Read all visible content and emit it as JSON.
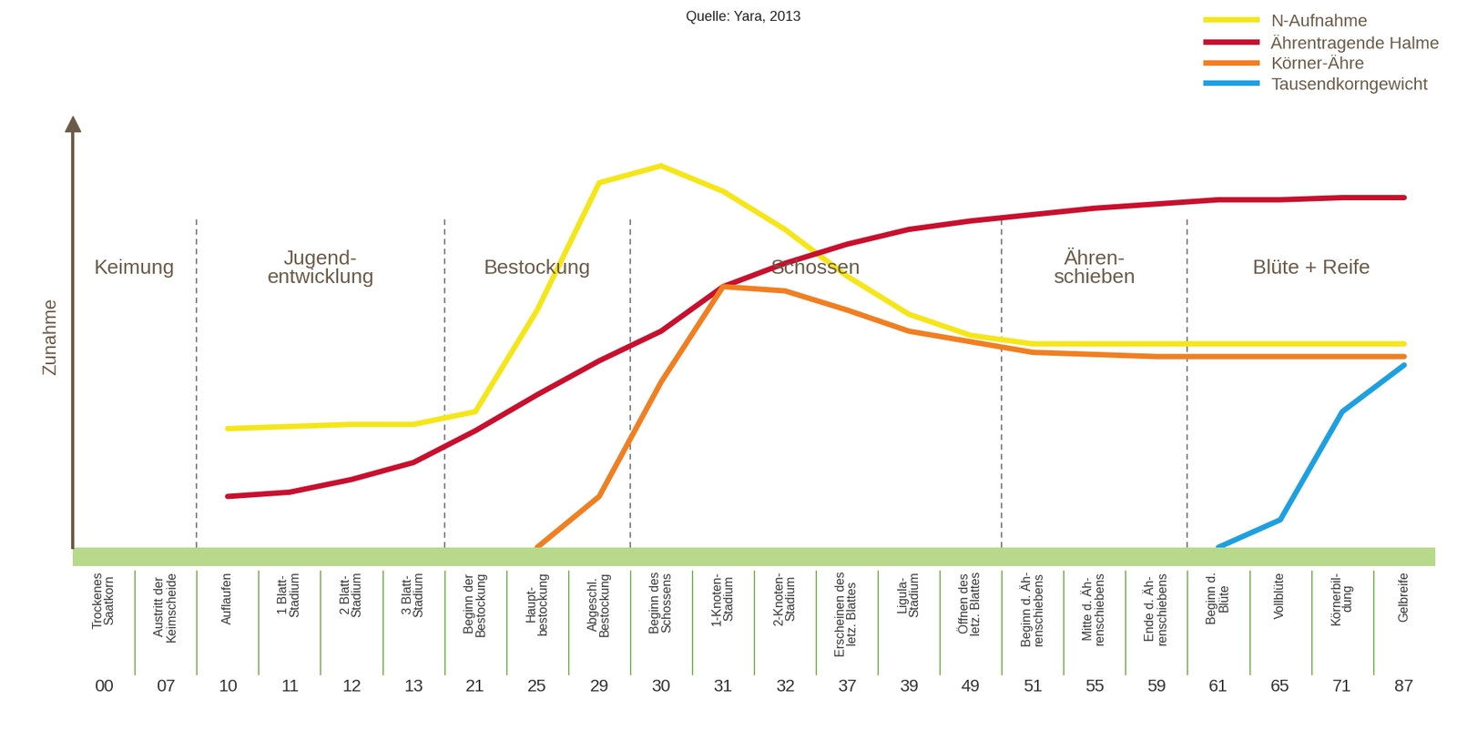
{
  "chart_data": {
    "type": "line",
    "source": "Quelle: Yara, 2013",
    "y_label": "Zunahme",
    "categories": [
      "00",
      "07",
      "10",
      "11",
      "12",
      "13",
      "21",
      "25",
      "29",
      "30",
      "31",
      "32",
      "37",
      "39",
      "49",
      "51",
      "55",
      "59",
      "61",
      "65",
      "71",
      "87"
    ],
    "stage_names": [
      "Trockenes\nSaatkorn",
      "Austritt der\nKeimscheide",
      "Auflaufen",
      "1 Blatt-\nStadium",
      "2 Blatt-\nStadium",
      "3 Blatt-\nStadium",
      "Beginn der\nBestockung",
      "Haupt-\nbestockung",
      "Abgeschl.\nBestockung",
      "Beginn des\nSchossens",
      "1-Knoten-\nStadium",
      "2-Knoten-\nStadium",
      "Erscheinen des\nletz. Blattes",
      "Ligula-\nStadium",
      "Öffnen des\nletz. Blattes",
      "Beginn d. Äh-\nrenschiebens",
      "Mitte d. Äh-\nrenschiebens",
      "Ende d. Äh-\nrenschiebens",
      "Beginn d.\nBlüte",
      "Vollblüte",
      "Körnerbil-\ndung",
      "Gelbreife"
    ],
    "phases": [
      {
        "label": "Keimung",
        "from": "00",
        "to": "07"
      },
      {
        "label": "Jugend-\nentwicklung",
        "from": "10",
        "to": "13"
      },
      {
        "label": "Bestockung",
        "from": "21",
        "to": "29"
      },
      {
        "label": "Schossen",
        "from": "30",
        "to": "49"
      },
      {
        "label": "Ähren-\nschieben",
        "from": "51",
        "to": "59"
      },
      {
        "label": "Blüte + Reife",
        "from": "61",
        "to": "87"
      }
    ],
    "series": [
      {
        "name": "N-Aufnahme",
        "color": "#f5e61a",
        "values": [
          null,
          null,
          28,
          28.5,
          29,
          29,
          32,
          56,
          86,
          90,
          84,
          75,
          64,
          55,
          50,
          48,
          48,
          48,
          48,
          48,
          48,
          48
        ]
      },
      {
        "name": "Ährentragende Halme",
        "color": "#c8102e",
        "values": [
          null,
          null,
          12,
          13,
          16,
          20,
          27.5,
          36,
          44,
          51,
          61.5,
          67,
          71.5,
          75,
          77,
          78.5,
          80,
          81,
          82,
          82,
          82.5,
          82.5
        ]
      },
      {
        "name": "Körner-Ähre",
        "color": "#f07f22",
        "values": [
          null,
          null,
          null,
          null,
          null,
          null,
          null,
          0,
          12,
          39,
          61.5,
          60.5,
          56,
          51,
          48.5,
          46,
          45.5,
          45,
          45,
          45,
          45,
          45
        ]
      },
      {
        "name": "Tausendkorngewicht",
        "color": "#1ea0e0",
        "values": [
          null,
          null,
          null,
          null,
          null,
          null,
          null,
          null,
          null,
          null,
          null,
          null,
          null,
          null,
          null,
          null,
          null,
          null,
          0,
          6.5,
          32,
          43
        ]
      }
    ],
    "ylim": [
      0,
      100
    ],
    "yticks": [],
    "tick_labels": "x",
    "legend": "upper right",
    "grid": false
  }
}
